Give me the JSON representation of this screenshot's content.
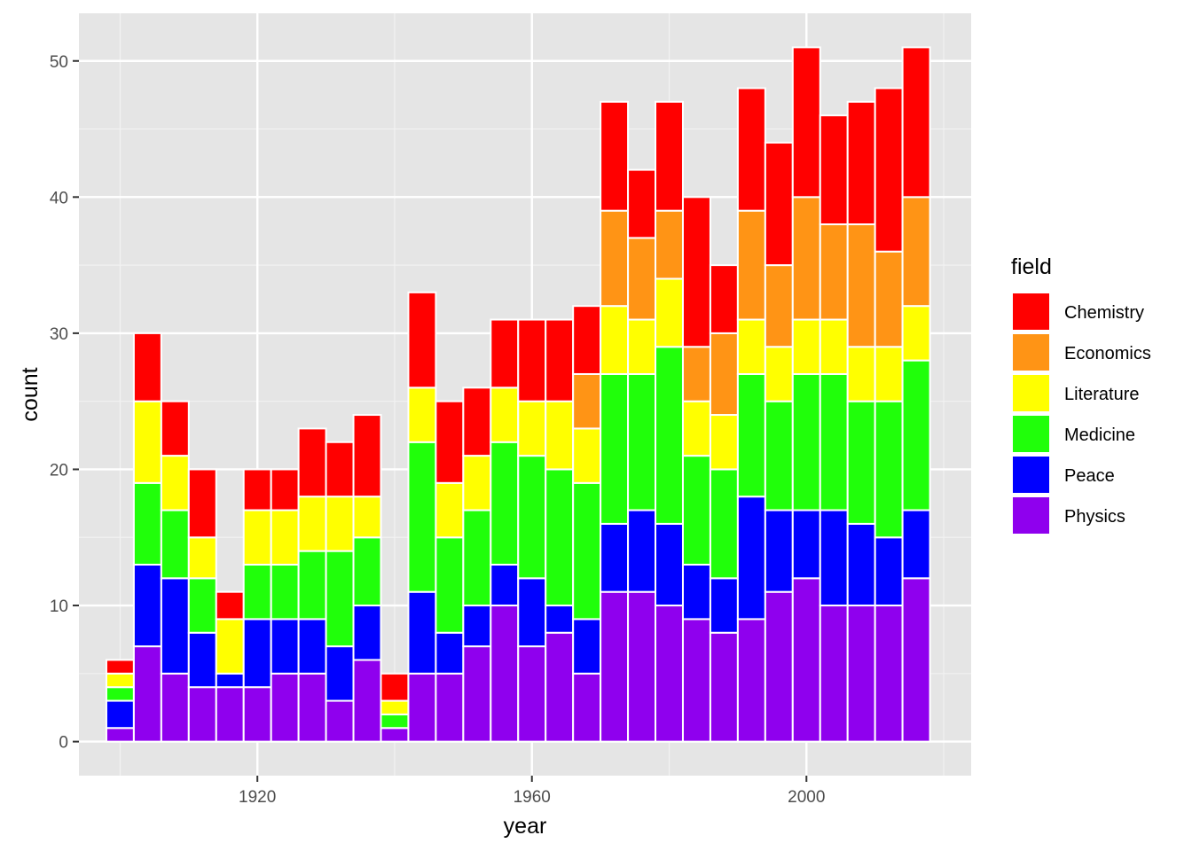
{
  "chart_data": {
    "type": "bar",
    "stacked": true,
    "xlabel": "year",
    "ylabel": "count",
    "xlim": [
      1894,
      2024
    ],
    "ylim": [
      -2.5,
      53.5
    ],
    "x_ticks": [
      1920,
      1960,
      2000
    ],
    "y_ticks": [
      0,
      10,
      20,
      30,
      40,
      50
    ],
    "grid": true,
    "bin_width": 4,
    "legend": {
      "title": "field",
      "placement": "right",
      "entries": [
        "Chemistry",
        "Economics",
        "Literature",
        "Medicine",
        "Peace",
        "Physics"
      ]
    },
    "colors": {
      "Chemistry": "#ff0000",
      "Economics": "#ff9415",
      "Literature": "#ffff00",
      "Medicine": "#20ff0a",
      "Peace": "#0000ff",
      "Physics": "#8f00ee"
    },
    "stack_order": [
      "Physics",
      "Peace",
      "Medicine",
      "Literature",
      "Economics",
      "Chemistry"
    ],
    "x": [
      1900,
      1904,
      1908,
      1912,
      1916,
      1920,
      1924,
      1928,
      1932,
      1936,
      1940,
      1944,
      1948,
      1952,
      1956,
      1960,
      1964,
      1968,
      1972,
      1976,
      1980,
      1984,
      1988,
      1992,
      1996,
      2000,
      2004,
      2008,
      2012,
      2016
    ],
    "series": [
      {
        "name": "Physics",
        "values": [
          1,
          7,
          5,
          4,
          4,
          4,
          5,
          5,
          3,
          6,
          1,
          5,
          5,
          7,
          10,
          7,
          8,
          5,
          11,
          11,
          10,
          9,
          8,
          9,
          11,
          12,
          10,
          10,
          10,
          12
        ]
      },
      {
        "name": "Peace",
        "values": [
          2,
          6,
          7,
          4,
          1,
          5,
          4,
          4,
          4,
          4,
          0,
          6,
          3,
          3,
          3,
          5,
          2,
          4,
          5,
          6,
          6,
          4,
          4,
          9,
          6,
          5,
          7,
          6,
          5,
          5
        ]
      },
      {
        "name": "Medicine",
        "values": [
          1,
          6,
          5,
          4,
          0,
          4,
          4,
          5,
          7,
          5,
          1,
          11,
          7,
          7,
          9,
          9,
          10,
          10,
          11,
          10,
          13,
          8,
          8,
          9,
          8,
          10,
          10,
          9,
          10,
          11
        ]
      },
      {
        "name": "Literature",
        "values": [
          1,
          6,
          4,
          3,
          4,
          4,
          4,
          4,
          4,
          3,
          1,
          4,
          4,
          4,
          4,
          4,
          5,
          4,
          5,
          4,
          5,
          4,
          4,
          4,
          4,
          4,
          4,
          4,
          4,
          4
        ]
      },
      {
        "name": "Economics",
        "values": [
          0,
          0,
          0,
          0,
          0,
          0,
          0,
          0,
          0,
          0,
          0,
          0,
          0,
          0,
          0,
          0,
          0,
          4,
          7,
          6,
          5,
          4,
          6,
          8,
          6,
          9,
          7,
          9,
          7,
          8
        ]
      },
      {
        "name": "Chemistry",
        "values": [
          1,
          5,
          4,
          5,
          2,
          3,
          3,
          5,
          4,
          6,
          2,
          7,
          6,
          5,
          5,
          6,
          6,
          5,
          8,
          5,
          8,
          11,
          5,
          9,
          9,
          11,
          8,
          9,
          12,
          11
        ]
      }
    ]
  }
}
